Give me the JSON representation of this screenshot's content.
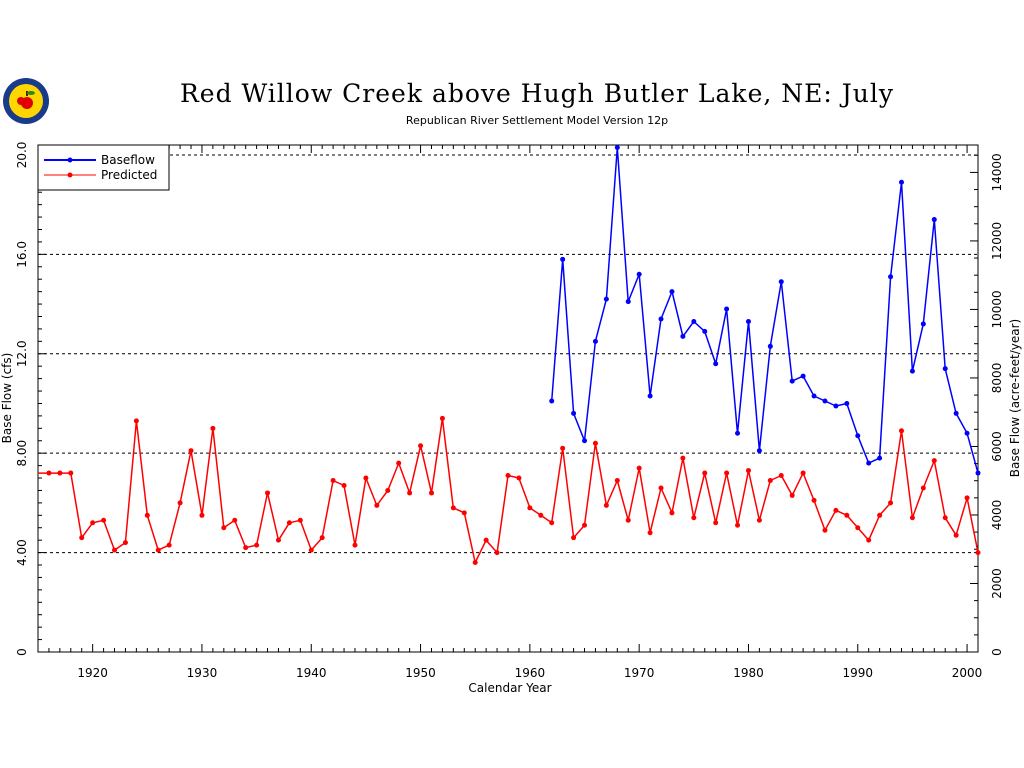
{
  "colors": {
    "baseflow": "#0000ff",
    "predicted": "#ff0000",
    "grid": "#000000",
    "logo_fill": "#ffd700",
    "logo_ring": "#1a3a8a",
    "apple": "#e00000"
  },
  "chart_data": {
    "type": "line",
    "title": "Red Willow Creek above Hugh Butler Lake, NE: July",
    "subtitle": "Republican River Settlement Model Version 12p",
    "xlabel": "Calendar Year",
    "ylabel": "Base Flow (cfs)",
    "ylabel_right": "Base Flow (acre-feet/year)",
    "xlim": [
      1915,
      2001
    ],
    "ylim": [
      0,
      20.4
    ],
    "ylim_right": [
      0,
      14800
    ],
    "x_ticks": [
      1920,
      1930,
      1940,
      1950,
      1960,
      1970,
      1980,
      1990,
      2000
    ],
    "y_ticks": [
      "0",
      "4.00",
      "8.00",
      "12.0",
      "16.0",
      "20.0"
    ],
    "y_tick_values": [
      0,
      4,
      8,
      12,
      16,
      20
    ],
    "y_ticks_right": [
      "0",
      "2000",
      "4000",
      "6000",
      "8000",
      "10000",
      "12000",
      "14000"
    ],
    "y_tick_values_right": [
      0,
      2000,
      4000,
      6000,
      8000,
      10000,
      12000,
      14000
    ],
    "grid_y": [
      4,
      8,
      12,
      16,
      20
    ],
    "legend": {
      "placement": "top-left",
      "entries": [
        "Baseflow",
        "Predicted"
      ]
    },
    "series": [
      {
        "name": "Baseflow",
        "x": [
          1962,
          1963,
          1964,
          1965,
          1966,
          1967,
          1968,
          1969,
          1970,
          1971,
          1972,
          1973,
          1974,
          1975,
          1976,
          1977,
          1978,
          1979,
          1980,
          1981,
          1982,
          1983,
          1984,
          1985,
          1986,
          1987,
          1988,
          1989,
          1990,
          1991,
          1992,
          1993,
          1994,
          1995,
          1996,
          1997,
          1998,
          1999,
          2000,
          2001
        ],
        "y": [
          10.1,
          15.8,
          9.6,
          8.5,
          12.5,
          14.2,
          20.3,
          14.1,
          15.2,
          10.3,
          13.4,
          14.5,
          12.7,
          13.3,
          12.9,
          11.6,
          13.8,
          8.8,
          13.3,
          8.1,
          12.3,
          14.9,
          10.9,
          11.1,
          10.3,
          10.1,
          9.9,
          10.0,
          8.7,
          7.6,
          7.8,
          15.1,
          18.9,
          11.3,
          13.2,
          17.4,
          11.4,
          9.6,
          8.8,
          7.2
        ]
      },
      {
        "name": "Predicted",
        "x": [
          1915,
          1916,
          1917,
          1918,
          1919,
          1920,
          1921,
          1922,
          1923,
          1924,
          1925,
          1926,
          1927,
          1928,
          1929,
          1930,
          1931,
          1932,
          1933,
          1934,
          1935,
          1936,
          1937,
          1938,
          1939,
          1940,
          1941,
          1942,
          1943,
          1944,
          1945,
          1946,
          1947,
          1948,
          1949,
          1950,
          1951,
          1952,
          1953,
          1954,
          1955,
          1956,
          1957,
          1958,
          1959,
          1960,
          1961,
          1962,
          1963,
          1964,
          1965,
          1966,
          1967,
          1968,
          1969,
          1970,
          1971,
          1972,
          1973,
          1974,
          1975,
          1976,
          1977,
          1978,
          1979,
          1980,
          1981,
          1982,
          1983,
          1984,
          1985,
          1986,
          1987,
          1988,
          1989,
          1990,
          1991,
          1992,
          1993,
          1994,
          1995,
          1996,
          1997,
          1998,
          1999,
          2000,
          2001
        ],
        "y": [
          7.2,
          7.2,
          7.2,
          7.2,
          4.6,
          5.2,
          5.3,
          4.1,
          4.4,
          9.3,
          5.5,
          4.1,
          4.3,
          6.0,
          8.1,
          5.5,
          9.0,
          5.0,
          5.3,
          4.2,
          4.3,
          6.4,
          4.5,
          5.2,
          5.3,
          4.1,
          4.6,
          6.9,
          6.7,
          4.3,
          7.0,
          5.9,
          6.5,
          7.6,
          6.4,
          8.3,
          6.4,
          9.4,
          5.8,
          5.6,
          3.6,
          4.5,
          4.0,
          7.1,
          7.0,
          5.8,
          5.5,
          5.2,
          8.2,
          4.6,
          5.1,
          8.4,
          5.9,
          6.9,
          5.3,
          7.4,
          4.8,
          6.6,
          5.6,
          7.8,
          5.4,
          7.2,
          5.2,
          7.2,
          5.1,
          7.3,
          5.3,
          6.9,
          7.1,
          6.3,
          7.2,
          6.1,
          4.9,
          5.7,
          5.5,
          5.0,
          4.5,
          5.5,
          6.0,
          8.9,
          5.4,
          6.6,
          7.7,
          5.4,
          4.7,
          6.2,
          4.0
        ]
      }
    ]
  }
}
